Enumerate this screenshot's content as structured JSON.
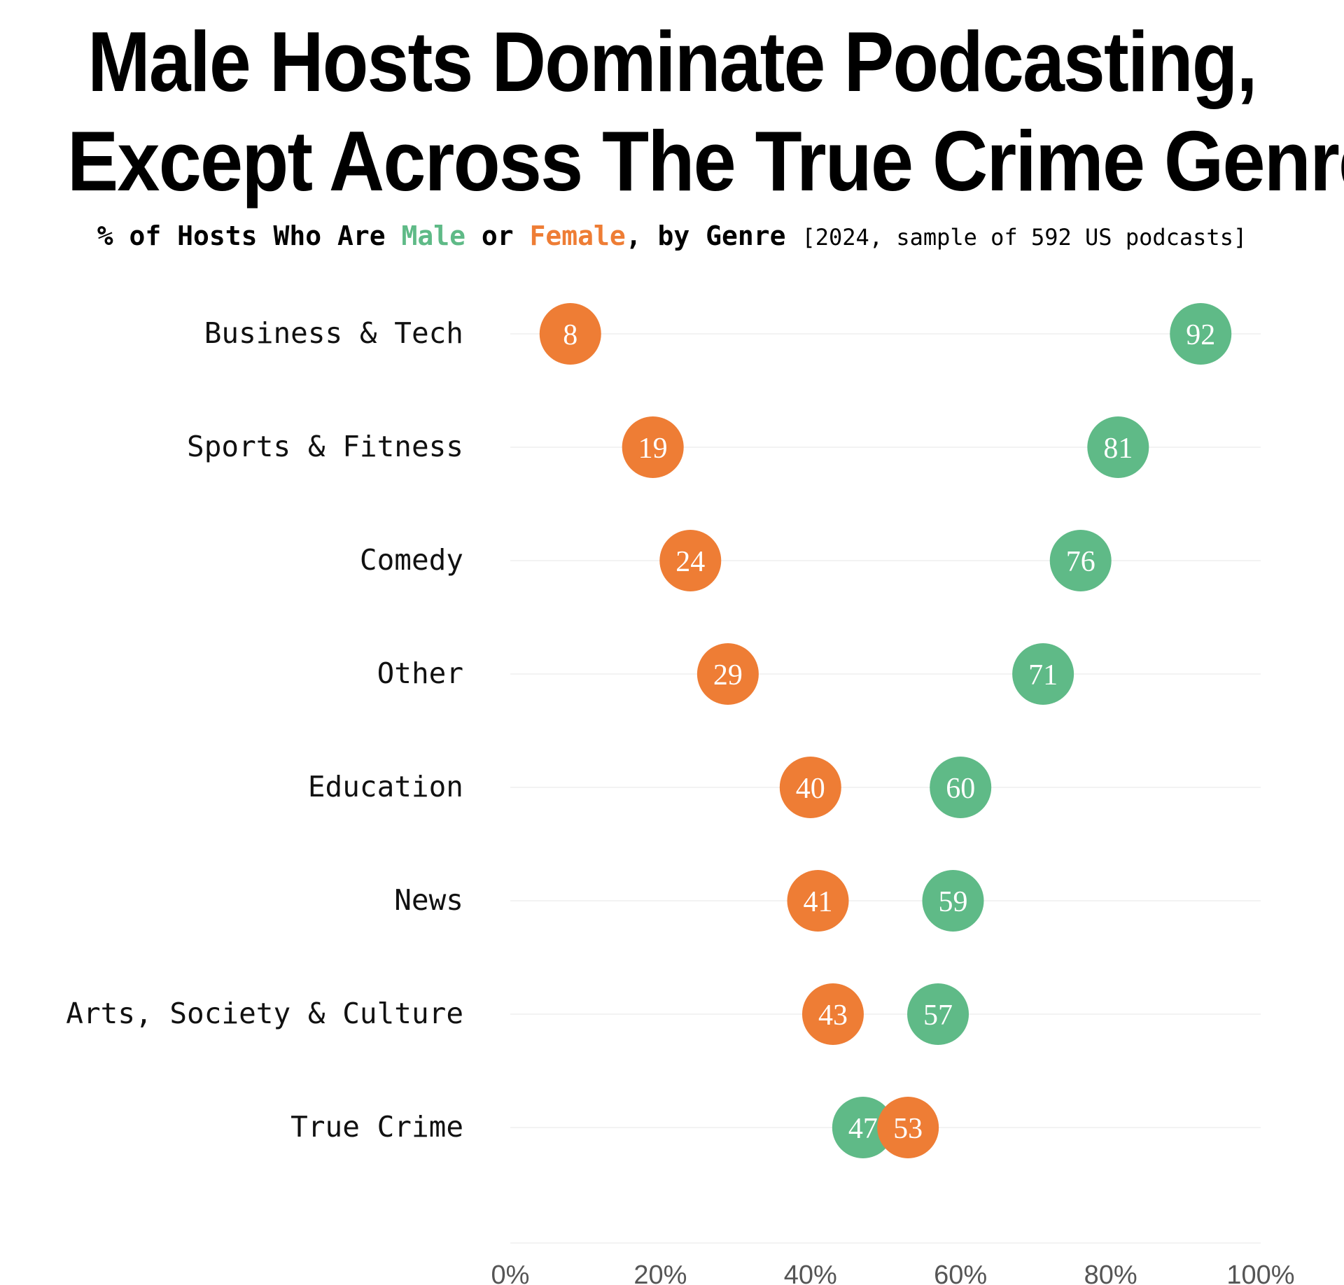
{
  "title": {
    "line1": "Male Hosts Dominate Podcasting,",
    "line2": "Except Across The True Crime Genre"
  },
  "subtitle": {
    "prefix": "% of Hosts Who Are ",
    "male_word": "Male",
    "connector": " or ",
    "female_word": "Female",
    "suffix": ", by Genre ",
    "note": "[2024, sample of 592 US podcasts]"
  },
  "colors": {
    "male": "#5fba87",
    "female": "#ee7d35",
    "gridline": "#f3f3f3"
  },
  "chart_data": {
    "type": "scatter",
    "subtype": "dot-plot",
    "title": "Male Hosts Dominate Podcasting, Except Across The True Crime Genre",
    "subtitle": "% of Hosts Who Are Male or Female, by Genre [2024, sample of 592 US podcasts]",
    "xlabel": "",
    "ylabel": "",
    "xlim": [
      0,
      100
    ],
    "x_ticks": [
      "0%",
      "20%",
      "40%",
      "60%",
      "80%",
      "100%"
    ],
    "x_tick_values": [
      0,
      20,
      40,
      60,
      80,
      100
    ],
    "categories": [
      "Business & Tech",
      "Sports & Fitness",
      "Comedy",
      "Other",
      "Education",
      "News",
      "Arts, Society & Culture",
      "True Crime"
    ],
    "series": [
      {
        "name": "Female",
        "color": "#ee7d35",
        "values": [
          8,
          19,
          24,
          29,
          40,
          41,
          43,
          53
        ]
      },
      {
        "name": "Male",
        "color": "#5fba87",
        "values": [
          92,
          81,
          76,
          71,
          60,
          59,
          57,
          47
        ]
      }
    ]
  }
}
